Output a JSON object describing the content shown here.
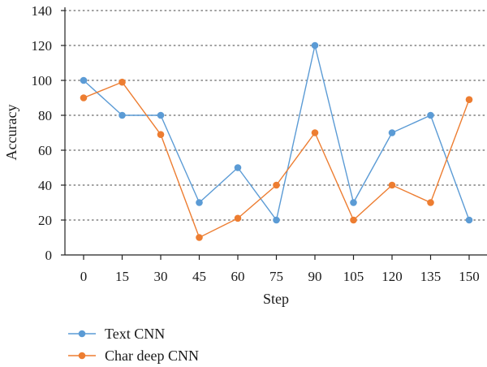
{
  "chart_data": {
    "type": "line",
    "title": "",
    "xlabel": "Step",
    "ylabel": "Accuracy",
    "x": [
      0,
      15,
      30,
      45,
      60,
      75,
      90,
      105,
      120,
      135,
      150
    ],
    "x_tick_labels": [
      "0",
      "15",
      "30",
      "45",
      "60",
      "75",
      "90",
      "105",
      "120",
      "135",
      "150"
    ],
    "y_ticks": [
      0,
      20,
      40,
      60,
      80,
      100,
      120,
      140
    ],
    "y_tick_labels": [
      "0",
      "20",
      "40",
      "60",
      "80",
      "100",
      "120",
      "140"
    ],
    "ylim": [
      0,
      140
    ],
    "grid": "horizontal dotted",
    "legend_placement": "bottom-left",
    "series": [
      {
        "name": "Text CNN",
        "color": "#5b9bd5",
        "values": [
          100,
          80,
          80,
          30,
          50,
          20,
          120,
          30,
          70,
          80,
          20
        ]
      },
      {
        "name": "Char deep CNN",
        "color": "#ed7d31",
        "values": [
          90,
          99,
          69,
          10,
          21,
          40,
          70,
          20,
          40,
          30,
          89
        ]
      }
    ]
  }
}
